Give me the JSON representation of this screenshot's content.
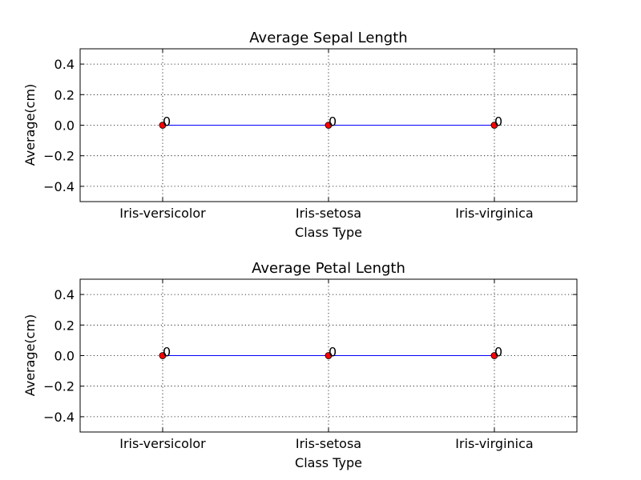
{
  "figure": {
    "background": "#ffffff"
  },
  "chart_data": [
    {
      "type": "line",
      "title": "Average Sepal Length",
      "xlabel": "Class Type",
      "ylabel": "Average(cm)",
      "categories": [
        "Iris-versicolor",
        "Iris-setosa",
        "Iris-virginica"
      ],
      "series": [
        {
          "values": [
            0,
            0,
            0
          ],
          "line_color": "#0000ff",
          "marker_color": "#ff0000"
        }
      ],
      "data_labels": [
        "0",
        "0",
        "0"
      ],
      "ylim": [
        -0.5,
        0.5
      ],
      "yticks": [
        0.4,
        0.2,
        0.0,
        -0.2,
        -0.4
      ],
      "ytick_labels": [
        "0.4",
        "0.2",
        "0.0",
        "−0.2",
        "−0.4"
      ],
      "grid": true,
      "legend": "none"
    },
    {
      "type": "line",
      "title": "Average Petal Length",
      "xlabel": "Class Type",
      "ylabel": "Average(cm)",
      "categories": [
        "Iris-versicolor",
        "Iris-setosa",
        "Iris-virginica"
      ],
      "series": [
        {
          "values": [
            0,
            0,
            0
          ],
          "line_color": "#0000ff",
          "marker_color": "#ff0000"
        }
      ],
      "data_labels": [
        "0",
        "0",
        "0"
      ],
      "ylim": [
        -0.5,
        0.5
      ],
      "yticks": [
        0.4,
        0.2,
        0.0,
        -0.2,
        -0.4
      ],
      "ytick_labels": [
        "0.4",
        "0.2",
        "0.0",
        "−0.2",
        "−0.4"
      ],
      "grid": true,
      "legend": "none"
    }
  ]
}
